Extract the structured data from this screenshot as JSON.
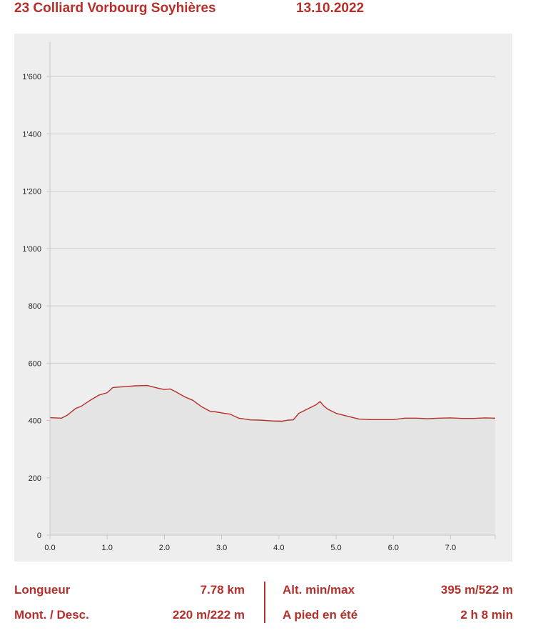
{
  "header": {
    "title": "23 Colliard Vorbourg Soyhières",
    "date": "13.10.2022"
  },
  "colors": {
    "accent": "#b5302b",
    "panel_bg": "#eeeeee",
    "area_fill": "#e4e4e4",
    "grid": "#cccccc",
    "axis": "#c8c8c8"
  },
  "chart_data": {
    "type": "area",
    "title": "",
    "xlabel": "",
    "ylabel": "",
    "xlim": [
      0,
      7.78
    ],
    "ylim": [
      0,
      1720
    ],
    "x_ticks": [
      0,
      1,
      2,
      3,
      4,
      5,
      6,
      7
    ],
    "x_tick_labels": [
      "0.0",
      "1.0",
      "2.0",
      "3.0",
      "4.0",
      "5.0",
      "6.0",
      "7.0"
    ],
    "y_ticks": [
      0,
      200,
      400,
      600,
      800,
      1000,
      1200,
      1400,
      1600
    ],
    "y_tick_labels": [
      "0",
      "200",
      "400",
      "600",
      "800",
      "1'000",
      "1'200",
      "1'400",
      "1'600"
    ],
    "grid": true,
    "series": [
      {
        "x": [
          0,
          0.2,
          0.3,
          0.45,
          0.55,
          0.7,
          0.85,
          1.0,
          1.1,
          1.3,
          1.5,
          1.7,
          1.9,
          2.0,
          2.1,
          2.2,
          2.35,
          2.5,
          2.65,
          2.8,
          2.9,
          3.05,
          3.15,
          3.3,
          3.5,
          3.7,
          3.9,
          4.05,
          4.15,
          4.25,
          4.35,
          4.55,
          4.65,
          4.72,
          4.78,
          4.85,
          5.0,
          5.2,
          5.4,
          5.6,
          5.8,
          6.0,
          6.2,
          6.4,
          6.6,
          6.8,
          7.0,
          7.2,
          7.4,
          7.6,
          7.78
        ],
        "values": [
          410,
          408,
          418,
          442,
          450,
          470,
          488,
          497,
          515,
          518,
          521,
          522,
          512,
          508,
          510,
          500,
          483,
          470,
          448,
          432,
          430,
          425,
          422,
          408,
          402,
          401,
          398,
          397,
          401,
          402,
          425,
          445,
          455,
          466,
          452,
          440,
          425,
          415,
          405,
          403,
          403,
          403,
          408,
          408,
          406,
          408,
          409,
          407,
          407,
          409,
          408
        ]
      }
    ]
  },
  "stats": {
    "left": [
      {
        "label": "Longueur",
        "value": "7.78 km"
      },
      {
        "label": "Mont. / Desc.",
        "value": "220 m/222 m"
      }
    ],
    "right": [
      {
        "label": "Alt. min/max",
        "value": "395 m/522 m"
      },
      {
        "label": "A pied en été",
        "value": "2 h 8 min"
      }
    ]
  }
}
